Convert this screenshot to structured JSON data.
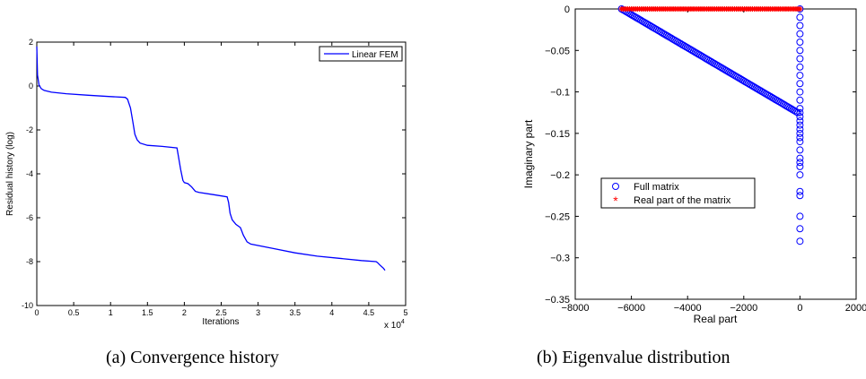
{
  "captions": {
    "a": "(a)  Convergence history",
    "b": "(b)  Eigenvalue distribution"
  },
  "chart_data": [
    {
      "type": "line",
      "title": "",
      "xlabel": "Iterations",
      "ylabel": "Residual history (log)",
      "xlim": [
        0,
        5
      ],
      "ylim": [
        -10,
        2
      ],
      "x_exponent_label": "x 10",
      "x_exponent_power": "4",
      "x_ticks": [
        0,
        0.5,
        1,
        1.5,
        2,
        2.5,
        3,
        3.5,
        4,
        4.5,
        5
      ],
      "x_tick_labels": [
        "0",
        "0.5",
        "1",
        "1.5",
        "2",
        "2.5",
        "3",
        "3.5",
        "4",
        "4.5",
        "5"
      ],
      "y_ticks": [
        -10,
        -8,
        -6,
        -4,
        -2,
        0,
        2
      ],
      "y_tick_labels": [
        "-10",
        "-8",
        "-6",
        "-4",
        "-2",
        "0",
        "2"
      ],
      "grid": false,
      "legend": "top-right",
      "series": [
        {
          "name": "Linear FEM",
          "color": "#0000ff",
          "x": [
            0,
            0.01,
            0.03,
            0.06,
            0.1,
            0.2,
            0.4,
            0.7,
            1.0,
            1.2,
            1.23,
            1.27,
            1.3,
            1.33,
            1.36,
            1.4,
            1.5,
            1.7,
            1.9,
            1.92,
            1.95,
            1.98,
            2.0,
            2.05,
            2.1,
            2.15,
            2.2,
            2.4,
            2.58,
            2.6,
            2.62,
            2.65,
            2.7,
            2.76,
            2.8,
            2.85,
            2.9,
            3.2,
            3.5,
            3.8,
            4.1,
            4.4,
            4.6,
            4.62,
            4.65,
            4.7,
            4.72
          ],
          "y": [
            1.8,
            0.5,
            0.05,
            -0.12,
            -0.2,
            -0.28,
            -0.35,
            -0.42,
            -0.48,
            -0.52,
            -0.6,
            -1.0,
            -1.6,
            -2.2,
            -2.45,
            -2.6,
            -2.7,
            -2.75,
            -2.82,
            -3.2,
            -3.8,
            -4.3,
            -4.4,
            -4.45,
            -4.6,
            -4.8,
            -4.85,
            -4.95,
            -5.05,
            -5.3,
            -5.8,
            -6.1,
            -6.3,
            -6.45,
            -6.8,
            -7.1,
            -7.2,
            -7.4,
            -7.6,
            -7.75,
            -7.85,
            -7.95,
            -8.0,
            -8.05,
            -8.15,
            -8.3,
            -8.4
          ]
        }
      ]
    },
    {
      "type": "scatter",
      "title": "",
      "xlabel": "Real part",
      "ylabel": "Imaginary part",
      "xlim": [
        -8000,
        2000
      ],
      "ylim": [
        -0.35,
        0
      ],
      "x_ticks": [
        -8000,
        -6000,
        -4000,
        -2000,
        0,
        2000
      ],
      "x_tick_labels": [
        "−8000",
        "−6000",
        "−4000",
        "−2000",
        "0",
        "2000"
      ],
      "y_ticks": [
        0,
        -0.05,
        -0.1,
        -0.15,
        -0.2,
        -0.25,
        -0.3,
        -0.35
      ],
      "y_tick_labels": [
        "0",
        "−0.05",
        "−0.1",
        "−0.15",
        "−0.2",
        "−0.25",
        "−0.3",
        "−0.35"
      ],
      "grid": false,
      "legend": "center-left",
      "series": [
        {
          "name": "Full matrix",
          "marker": "circle",
          "color": "#0000ff",
          "diagonal": {
            "x_start": -6350,
            "y_start": 0,
            "x_end": -80,
            "y_end": -0.125
          },
          "vertical_column_x": 0,
          "vertical_column_y": [
            0,
            -0.01,
            -0.02,
            -0.03,
            -0.04,
            -0.05,
            -0.06,
            -0.07,
            -0.08,
            -0.09,
            -0.1,
            -0.11,
            -0.12,
            -0.125,
            -0.13,
            -0.135,
            -0.14,
            -0.145,
            -0.15,
            -0.155,
            -0.16,
            -0.17,
            -0.18,
            -0.185,
            -0.19,
            -0.2,
            -0.22,
            -0.225,
            -0.25,
            -0.265,
            -0.28
          ]
        },
        {
          "name": "Real part of the matrix",
          "marker": "asterisk",
          "color": "#ff0000",
          "band": {
            "x_start": -6350,
            "x_end": 0,
            "y": 0
          }
        }
      ]
    }
  ]
}
